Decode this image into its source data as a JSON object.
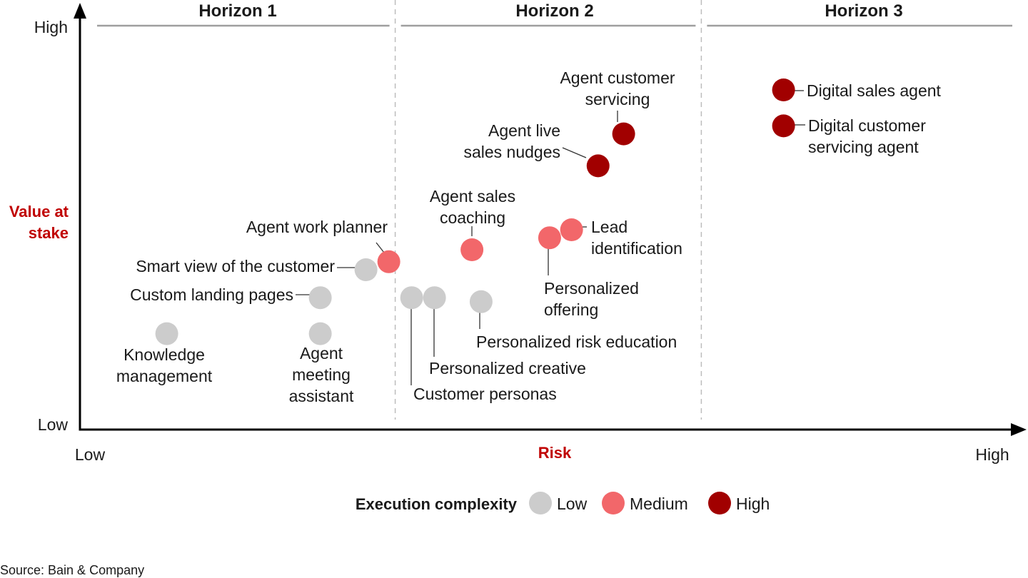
{
  "chart_data": {
    "type": "scatter",
    "xlabel": "Risk",
    "ylabel": [
      "Value at",
      "stake"
    ],
    "x_ticks": {
      "low": "Low",
      "high": "High"
    },
    "y_ticks": {
      "low": "Low",
      "high": "High"
    },
    "xlim": [
      0,
      100
    ],
    "ylim": [
      0,
      100
    ],
    "regions": [
      {
        "label": "Horizon 1",
        "x_range": [
          0,
          34.5
        ]
      },
      {
        "label": "Horizon 2",
        "x_range": [
          34.5,
          68
        ]
      },
      {
        "label": "Horizon 3",
        "x_range": [
          68,
          100
        ]
      }
    ],
    "legend": {
      "title": "Execution complexity",
      "placement": "bottom",
      "items": [
        {
          "name": "Low",
          "color": "#cccccc"
        },
        {
          "name": "Medium",
          "color": "#f2676a"
        },
        {
          "name": "High",
          "color": "#a10000"
        }
      ]
    },
    "points": [
      {
        "label": [
          "Knowledge",
          "management"
        ],
        "x": 9.5,
        "y": 24,
        "complexity": "Low"
      },
      {
        "label": [
          "Agent",
          "meeting",
          "assistant"
        ],
        "x": 26.3,
        "y": 24,
        "complexity": "Low"
      },
      {
        "label": [
          "Custom landing pages"
        ],
        "x": 26.3,
        "y": 33,
        "complexity": "Low"
      },
      {
        "label": [
          "Smart view of the customer"
        ],
        "x": 31.3,
        "y": 40,
        "complexity": "Low"
      },
      {
        "label": [
          "Agent work planner"
        ],
        "x": 33.8,
        "y": 42,
        "complexity": "Medium"
      },
      {
        "label": [
          "Customer personas"
        ],
        "x": 36.3,
        "y": 33,
        "complexity": "Low"
      },
      {
        "label": [
          "Personalized creative"
        ],
        "x": 38.8,
        "y": 33,
        "complexity": "Low"
      },
      {
        "label": [
          "Personalized risk education"
        ],
        "x": 43.9,
        "y": 32,
        "complexity": "Low"
      },
      {
        "label": [
          "Agent sales",
          "coaching"
        ],
        "x": 42.9,
        "y": 45,
        "complexity": "Medium"
      },
      {
        "label": [
          "Personalized",
          "offering"
        ],
        "x": 51.4,
        "y": 48,
        "complexity": "Medium"
      },
      {
        "label": [
          "Lead",
          "identification"
        ],
        "x": 53.8,
        "y": 50,
        "complexity": "Medium"
      },
      {
        "label": [
          "Agent live",
          "sales nudges"
        ],
        "x": 56.7,
        "y": 66,
        "complexity": "High"
      },
      {
        "label": [
          "Agent customer",
          "servicing"
        ],
        "x": 59.5,
        "y": 74,
        "complexity": "High"
      },
      {
        "label": [
          "Digital sales agent"
        ],
        "x": 77.0,
        "y": 85,
        "complexity": "High"
      },
      {
        "label": [
          "Digital customer",
          "servicing agent"
        ],
        "x": 77.0,
        "y": 76,
        "complexity": "High"
      }
    ]
  },
  "source": "Source: Bain & Company"
}
